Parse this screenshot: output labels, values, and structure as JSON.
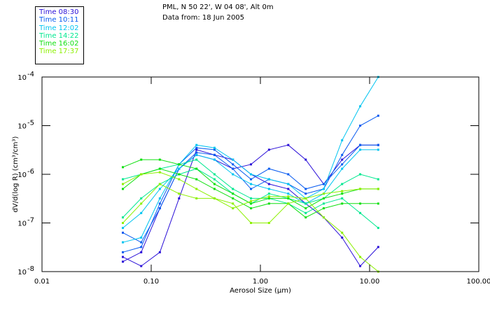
{
  "chart_data": {
    "type": "line",
    "title_lines": [
      "PML, N 50 22', W 04 08', Alt 0m",
      "Data from: 18 Jun 2005"
    ],
    "xlabel": "Aerosol Size (µm)",
    "ylabel": "dV/d(log R)  (cm³/cm³)",
    "xscale": "log",
    "yscale": "log",
    "xlim": [
      0.01,
      100
    ],
    "ylim": [
      1e-08,
      0.0001
    ],
    "xticks": [
      {
        "v": 0.01,
        "label": "0.01"
      },
      {
        "v": 0.1,
        "label": "0.10"
      },
      {
        "v": 1,
        "label": "1.00"
      },
      {
        "v": 10,
        "label": "10.00"
      },
      {
        "v": 100,
        "label": "100.00"
      }
    ],
    "yticks": [
      {
        "v": 0.0001,
        "base": "10",
        "exp": "-4"
      },
      {
        "v": 1e-05,
        "base": "10",
        "exp": "-5"
      },
      {
        "v": 1e-06,
        "base": "10",
        "exp": "-6"
      },
      {
        "v": 1e-07,
        "base": "10",
        "exp": "-7"
      },
      {
        "v": 1e-08,
        "base": "10",
        "exp": "-8"
      }
    ],
    "legend_placement": "top-left outside",
    "legend": [
      {
        "label": "Time 08:30",
        "color": "#2a0fd8"
      },
      {
        "label": "Time 10:11",
        "color": "#0a5cf0"
      },
      {
        "label": "Time 12:02",
        "color": "#00c4f0"
      },
      {
        "label": "Time 14:22",
        "color": "#00e890"
      },
      {
        "label": "Time 16:02",
        "color": "#10e010"
      },
      {
        "label": "Time 17:37",
        "color": "#8cf000"
      }
    ],
    "x": [
      0.055,
      0.081,
      0.12,
      0.18,
      0.26,
      0.38,
      0.56,
      0.82,
      1.2,
      1.8,
      2.6,
      3.8,
      5.6,
      8.2,
      12.0
    ],
    "series": [
      {
        "name": "Time 08:30",
        "values": [
          1.6e-08,
          2.5e-08,
          2e-07,
          1.3e-06,
          2.5e-06,
          2e-06,
          1.3e-06,
          1.6e-06,
          3.2e-06,
          4e-06,
          2e-06,
          6.3e-07,
          2e-06,
          4e-06,
          4e-06
        ]
      },
      {
        "name": "Time 08:30",
        "values": [
          2e-08,
          1.3e-08,
          2.5e-08,
          3.2e-07,
          3.2e-06,
          2.5e-06,
          2e-06,
          1e-06,
          6.3e-07,
          5e-07,
          2.5e-07,
          1.3e-07,
          5e-08,
          1.3e-08,
          3.2e-08
        ]
      },
      {
        "name": "Time 10:11",
        "values": [
          2.5e-08,
          3.2e-08,
          2.5e-07,
          1.6e-06,
          3.5e-06,
          3.2e-06,
          1.6e-06,
          7.9e-07,
          1.3e-06,
          1e-06,
          5e-07,
          6.3e-07,
          1.6e-06,
          4e-06,
          4e-06
        ]
      },
      {
        "name": "Time 10:11",
        "values": [
          6.3e-08,
          4e-08,
          2e-07,
          1.3e-06,
          2.8e-06,
          2.5e-06,
          1.3e-06,
          5e-07,
          7.9e-07,
          6.3e-07,
          4e-07,
          5e-07,
          2.5e-06,
          1e-05,
          1.6e-05
        ]
      },
      {
        "name": "Time 12:02",
        "values": [
          4e-08,
          5e-08,
          3.2e-07,
          1.6e-06,
          4e-06,
          3.5e-06,
          2e-06,
          1e-06,
          7.9e-07,
          6.3e-07,
          3.2e-07,
          5e-07,
          5e-06,
          2.5e-05,
          0.0001
        ]
      },
      {
        "name": "Time 12:02",
        "values": [
          7.9e-08,
          1.6e-07,
          5e-07,
          1.3e-06,
          2.5e-06,
          2e-06,
          1e-06,
          6.3e-07,
          5e-07,
          4e-07,
          2.5e-07,
          4e-07,
          1.3e-06,
          3.2e-06,
          3.2e-06
        ]
      },
      {
        "name": "Time 14:22",
        "values": [
          1.3e-07,
          3.2e-07,
          6.3e-07,
          1e-06,
          1.3e-06,
          7.9e-07,
          4e-07,
          2.5e-07,
          4e-07,
          3.2e-07,
          2.5e-07,
          3.2e-07,
          6.3e-07,
          1e-06,
          7.9e-07
        ]
      },
      {
        "name": "Time 14:22",
        "values": [
          7.9e-07,
          1e-06,
          1.3e-06,
          1.6e-06,
          2e-06,
          1e-06,
          5e-07,
          3.2e-07,
          3.2e-07,
          2.5e-07,
          1.6e-07,
          2.5e-07,
          3.2e-07,
          1.6e-07,
          7.9e-08
        ]
      },
      {
        "name": "Time 16:02",
        "values": [
          1.4e-06,
          2e-06,
          2e-06,
          1.6e-06,
          1.3e-06,
          6.3e-07,
          4e-07,
          2.5e-07,
          3.2e-07,
          3.2e-07,
          2e-07,
          3.2e-07,
          4e-07,
          5e-07,
          5e-07
        ]
      },
      {
        "name": "Time 16:02",
        "values": [
          5e-07,
          1e-06,
          1.3e-06,
          1e-06,
          7.9e-07,
          5e-07,
          3.2e-07,
          2e-07,
          2.5e-07,
          2.5e-07,
          1.3e-07,
          2e-07,
          2.5e-07,
          2.5e-07,
          2.5e-07
        ]
      },
      {
        "name": "Time 17:37",
        "values": [
          6.3e-07,
          1e-06,
          1.1e-06,
          7.9e-07,
          5e-07,
          3.2e-07,
          2e-07,
          2.8e-07,
          3.5e-07,
          3.5e-07,
          3.2e-07,
          4e-07,
          4.5e-07,
          5e-07,
          5e-07
        ]
      },
      {
        "name": "Time 17:37",
        "values": [
          1e-07,
          2.5e-07,
          6.3e-07,
          4e-07,
          3.2e-07,
          3.2e-07,
          2.5e-07,
          1e-07,
          1e-07,
          2.5e-07,
          3.2e-07,
          1.3e-07,
          6.3e-08,
          2e-08,
          1e-08
        ]
      }
    ]
  }
}
